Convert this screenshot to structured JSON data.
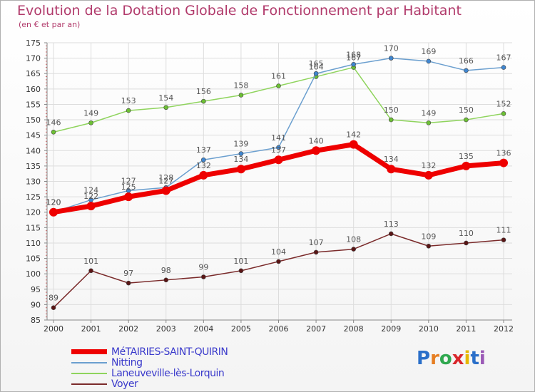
{
  "header": {
    "title": "Evolution de la Dotation Globale de Fonctionnement par Habitant",
    "subtitle": "(en € et par an)"
  },
  "logo": {
    "text": "Proxiti",
    "letters": [
      "P",
      "r",
      "o",
      "x",
      "i",
      "t",
      "i"
    ]
  },
  "colors": {
    "title": "#b13a6b",
    "legend_text": "#3a3acb",
    "grid": "#dddddd",
    "axis": "#888888",
    "logo": [
      "#2a6fc9",
      "#e67e22",
      "#2fa84f",
      "#d9262b",
      "#e6b800",
      "#2a6fc9",
      "#9b59b6"
    ]
  },
  "chart_data": {
    "type": "line",
    "title": "Evolution de la Dotation Globale de Fonctionnement par Habitant",
    "ylabel": "(en € et par an)",
    "xlabel": "",
    "ylim": [
      85,
      175
    ],
    "ytick_step": 5,
    "grid": true,
    "legend_position": "bottom-left",
    "categories": [
      "2000",
      "2001",
      "2002",
      "2003",
      "2004",
      "2005",
      "2006",
      "2007",
      "2008",
      "2009",
      "2010",
      "2011",
      "2012"
    ],
    "series": [
      {
        "name": "MéTAIRIES-SAINT-QUIRIN",
        "color": "#ee0000",
        "width": 7,
        "marker": 6,
        "values": [
          120,
          122,
          125,
          127,
          132,
          134,
          137,
          140,
          142,
          134,
          132,
          135,
          136
        ],
        "labels": [
          "120",
          "122",
          "125",
          "127",
          "132",
          "134",
          "137",
          "140",
          "142",
          "134",
          "132",
          "135",
          "136"
        ]
      },
      {
        "name": "Nitting",
        "color": "#6b9fcf",
        "point_color": "#3f86d0",
        "width": 1.5,
        "marker": 3,
        "values": [
          120,
          124,
          127,
          128,
          137,
          139,
          141,
          165,
          168,
          170,
          169,
          166,
          167
        ],
        "labels": [
          "120",
          "124",
          "127",
          "128",
          "137",
          "139",
          "141",
          "165",
          "168",
          "170",
          "169",
          "166",
          "167"
        ]
      },
      {
        "name": "Laneuveville-lès-Lorquin",
        "color": "#8fd45d",
        "point_color": "#6cbf34",
        "width": 1.5,
        "marker": 3,
        "values": [
          146,
          149,
          153,
          154,
          156,
          158,
          161,
          164,
          167,
          150,
          149,
          150,
          152
        ],
        "labels": [
          "146",
          "149",
          "153",
          "154",
          "156",
          "158",
          "161",
          "164",
          "167",
          "150",
          "149",
          "150",
          "152"
        ]
      },
      {
        "name": "Voyer",
        "color": "#7a2a2a",
        "point_color": "#5a1515",
        "width": 1.5,
        "marker": 3,
        "values": [
          89,
          101,
          97,
          98,
          99,
          101,
          104,
          107,
          108,
          113,
          109,
          110,
          111
        ],
        "labels": [
          "89",
          "101",
          "97",
          "98",
          "99",
          "101",
          "104",
          "107",
          "108",
          "113",
          "109",
          "110",
          "111"
        ]
      }
    ]
  }
}
